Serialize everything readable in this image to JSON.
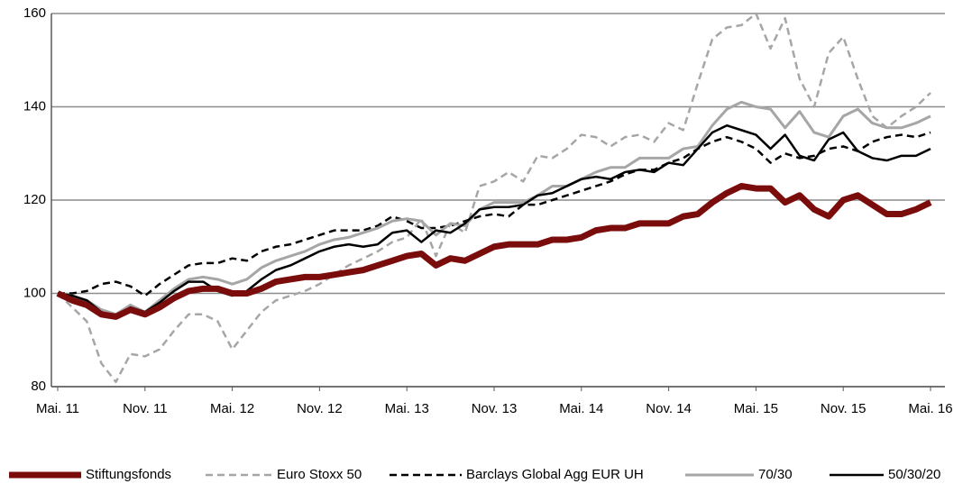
{
  "chart_data": {
    "type": "line",
    "categories": [
      "Mai. 11",
      null,
      null,
      null,
      null,
      null,
      "Nov. 11",
      null,
      null,
      null,
      null,
      null,
      "Mai. 12",
      null,
      null,
      null,
      null,
      null,
      "Nov. 12",
      null,
      null,
      null,
      null,
      null,
      "Mai. 13",
      null,
      null,
      null,
      null,
      null,
      "Nov. 13",
      null,
      null,
      null,
      null,
      null,
      "Mai. 14",
      null,
      null,
      null,
      null,
      null,
      "Nov. 14",
      null,
      null,
      null,
      null,
      null,
      "Mai. 15",
      null,
      null,
      null,
      null,
      null,
      "Nov. 15",
      null,
      null,
      null,
      null,
      null,
      "Mai. 16"
    ],
    "ylim": [
      80,
      160
    ],
    "yticks": [
      80,
      100,
      120,
      140,
      160
    ],
    "grid": true,
    "legend": "bottom",
    "series": [
      {
        "name": "Stiftungsfonds",
        "color": "#7b0c0c",
        "line_width": 7,
        "dashed": false,
        "values": [
          100,
          98.5,
          97.5,
          95.5,
          95,
          96.5,
          95.5,
          97,
          99,
          100.5,
          101,
          101,
          100,
          100,
          101,
          102.5,
          103,
          103.5,
          103.5,
          104,
          104.5,
          105,
          106,
          107,
          108,
          108.5,
          106,
          107.5,
          107,
          108.5,
          110,
          110.5,
          110.5,
          110.5,
          111.5,
          111.5,
          112,
          113.5,
          114,
          114,
          115,
          115,
          115,
          116.5,
          117,
          119.5,
          121.5,
          123,
          122.5,
          122.5,
          119.5,
          121,
          118,
          116.5,
          120,
          121,
          119,
          117,
          117,
          118,
          119.5
        ]
      },
      {
        "name": "Euro Stoxx 50",
        "color": "#a6a6a6",
        "line_width": 2.5,
        "dashed": true,
        "values": [
          100,
          97,
          94,
          85,
          81,
          87,
          86.5,
          88,
          92,
          95.5,
          95.5,
          94,
          88,
          92,
          96,
          98.5,
          99.5,
          100.5,
          102,
          104,
          106,
          107.5,
          109,
          111,
          112,
          116,
          108,
          115,
          113,
          123,
          124,
          126,
          124,
          129.5,
          129,
          131,
          134,
          133.5,
          131.5,
          133.5,
          134,
          132.5,
          136.5,
          135,
          145,
          154.5,
          157,
          157.5,
          160,
          152.5,
          159,
          146,
          140,
          151.5,
          155,
          146,
          138,
          135.5,
          138,
          140,
          143
        ]
      },
      {
        "name": "Barclays Global Agg EUR UH",
        "color": "#000000",
        "line_width": 2.5,
        "dashed": true,
        "values": [
          100,
          100,
          100.5,
          102,
          102.5,
          101.5,
          99.5,
          102,
          104,
          106,
          106.5,
          106.5,
          107.5,
          107,
          109,
          110,
          110.5,
          111.5,
          112.5,
          113.5,
          113.5,
          113.5,
          114.5,
          116.5,
          115.5,
          114,
          114,
          114.5,
          115.5,
          116.5,
          117,
          116.5,
          119,
          119,
          120,
          121,
          122,
          123,
          124,
          125.5,
          126.5,
          126.5,
          128,
          129,
          131,
          132.5,
          133.5,
          132.5,
          131,
          128,
          130,
          129,
          129.5,
          131,
          131.5,
          130.5,
          132.5,
          133.5,
          134,
          133.5,
          134.5
        ]
      },
      {
        "name": "70/30",
        "color": "#a6a6a6",
        "line_width": 3,
        "dashed": false,
        "values": [
          100,
          99.5,
          98.5,
          96.5,
          95.5,
          97.5,
          96,
          98.5,
          101,
          103,
          103.5,
          103,
          102,
          103,
          105.5,
          107,
          108,
          109,
          110.5,
          111.5,
          112,
          113,
          114,
          115.5,
          116,
          115.5,
          112.5,
          115,
          114.5,
          118,
          119.5,
          119.5,
          119.5,
          121,
          123,
          123,
          124.5,
          126,
          127,
          127,
          129,
          129,
          129,
          131,
          131.5,
          136,
          139.5,
          141,
          140,
          139.5,
          135.5,
          139,
          134.5,
          133.5,
          138,
          139.5,
          136.5,
          135.5,
          135.5,
          136.5,
          138
        ]
      },
      {
        "name": "50/30/20",
        "color": "#000000",
        "line_width": 2.5,
        "dashed": false,
        "values": [
          100,
          99.5,
          98.5,
          96,
          95,
          97,
          96,
          98,
          100.5,
          102.5,
          102.5,
          100.5,
          99.5,
          100.5,
          103,
          105,
          106,
          107.5,
          109,
          110,
          110.5,
          110,
          110.5,
          113,
          113.5,
          111,
          113.5,
          113,
          115,
          118,
          118.5,
          118.5,
          119,
          121,
          121.5,
          123,
          124.5,
          125,
          124.5,
          126,
          126.5,
          126,
          128,
          127.5,
          131,
          134.5,
          136,
          135,
          134,
          131,
          134,
          129.5,
          128.5,
          133,
          134.5,
          130.5,
          129,
          128.5,
          129.5,
          129.5,
          131
        ]
      }
    ]
  }
}
